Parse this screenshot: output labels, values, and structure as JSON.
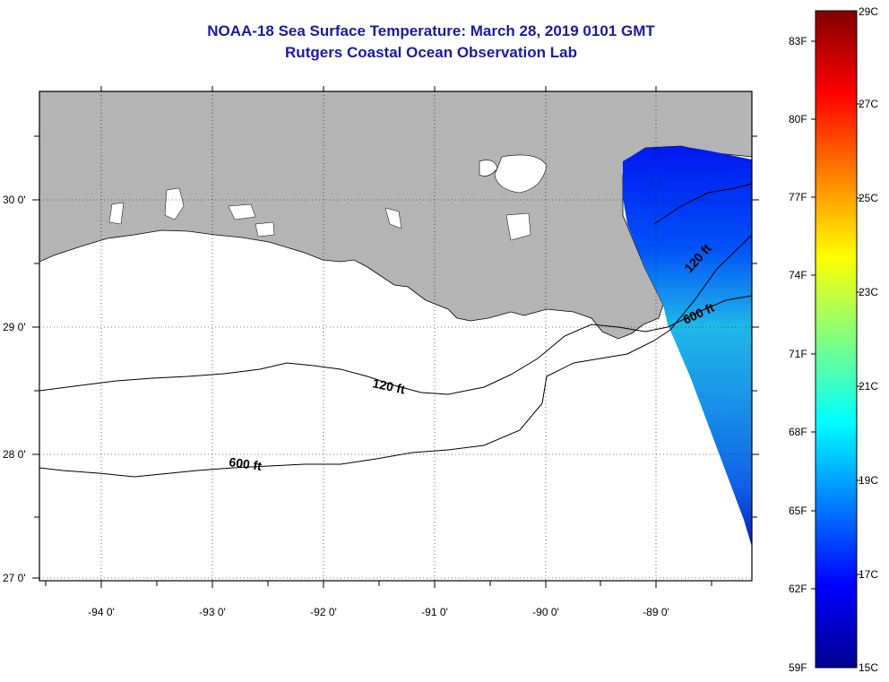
{
  "header": {
    "title": "NOAA-18 Sea Surface Temperature:  March 28, 2019 0101 GMT",
    "subtitle": "Rutgers Coastal Ocean Observation Lab"
  },
  "map": {
    "land_color": "#b4b4b4",
    "ocean_color": "#ffffff",
    "lat_labels": [
      "30 0'",
      "29 0'",
      "28 0'",
      "27 0'"
    ],
    "lon_labels": [
      "-94 0'",
      "-93 0'",
      "-92 0'",
      "-91 0'",
      "-90 0'",
      "-89 0'"
    ],
    "isobaths": [
      {
        "label": "120 ft"
      },
      {
        "label": "600 ft"
      },
      {
        "label": "120 ft"
      },
      {
        "label": "600 ft"
      }
    ]
  },
  "colorbar": {
    "fahrenheit": [
      "83F",
      "80F",
      "77F",
      "74F",
      "71F",
      "68F",
      "65F",
      "62F",
      "59F"
    ],
    "celsius": [
      "29C",
      "27C",
      "25C",
      "23C",
      "21C",
      "19C",
      "17C",
      "15C"
    ],
    "colors": [
      "#00008f",
      "#0000ff",
      "#0080ff",
      "#00ffff",
      "#80ff80",
      "#ffff00",
      "#ff8000",
      "#ff0000",
      "#800000"
    ]
  }
}
